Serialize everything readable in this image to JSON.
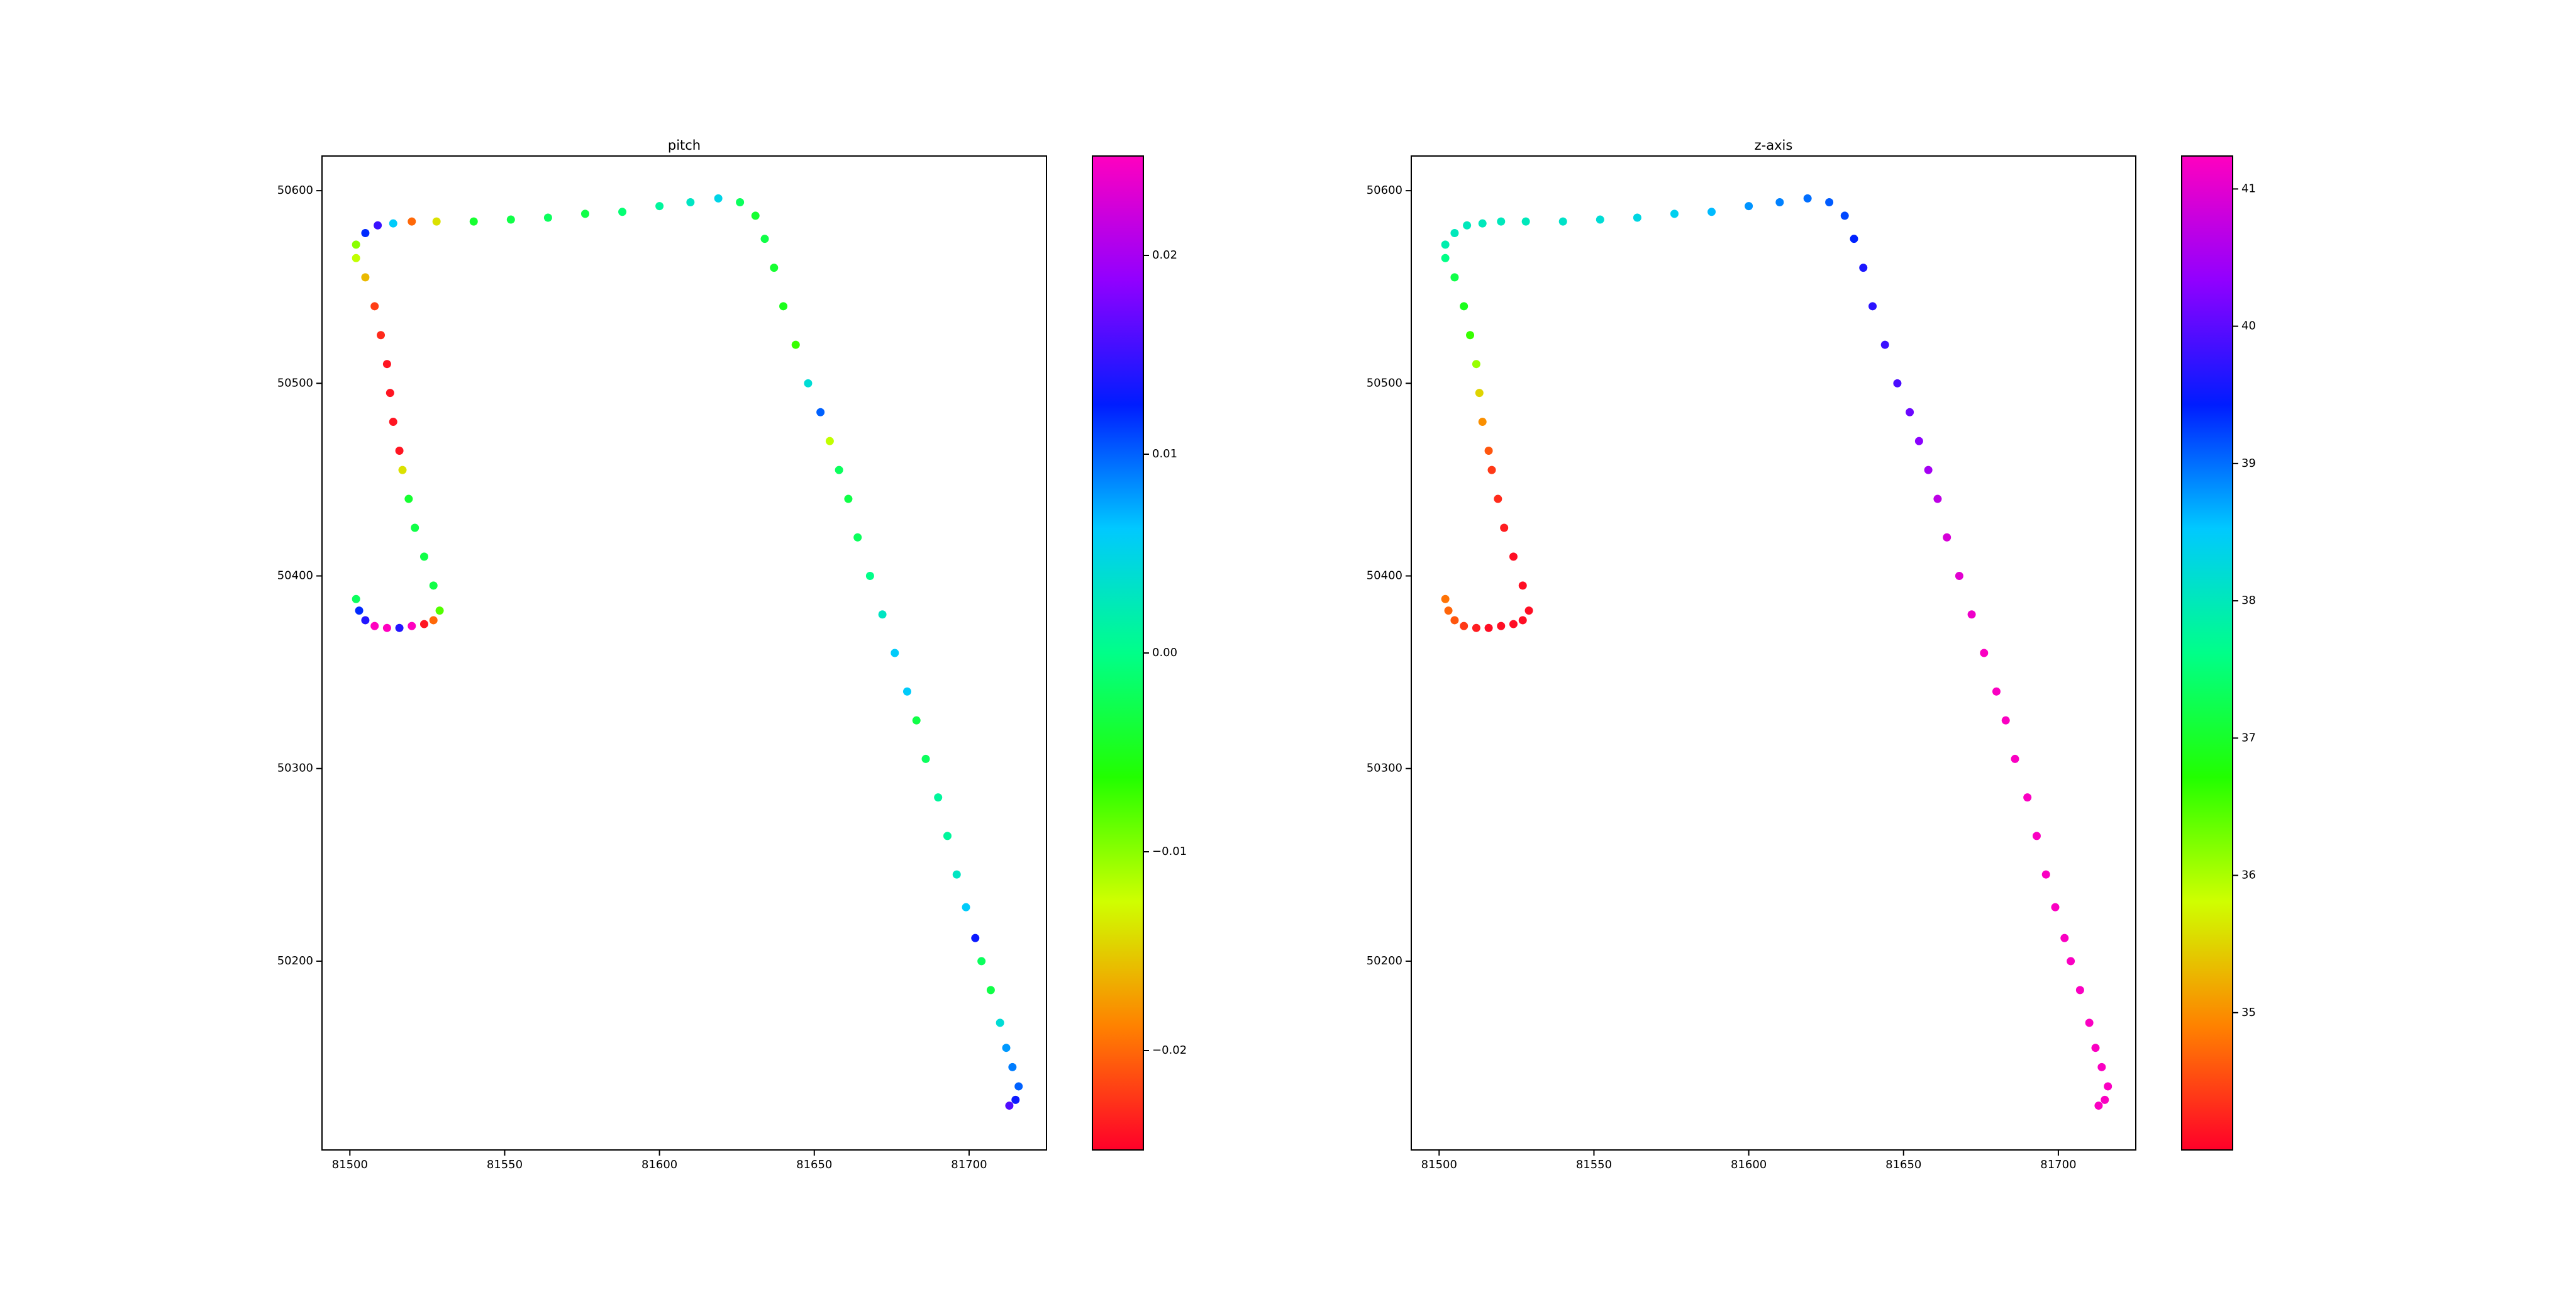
{
  "chart_data": [
    {
      "type": "scatter",
      "title": "pitch",
      "x": [
        81502,
        81503,
        81505,
        81508,
        81512,
        81516,
        81520,
        81524,
        81527,
        81529,
        81527,
        81524,
        81521,
        81519,
        81517,
        81516,
        81514,
        81513,
        81512,
        81510,
        81508,
        81505,
        81502,
        81502,
        81505,
        81509,
        81514,
        81520,
        81528,
        81540,
        81552,
        81564,
        81576,
        81588,
        81600,
        81610,
        81619,
        81626,
        81631,
        81634,
        81637,
        81640,
        81644,
        81648,
        81652,
        81655,
        81658,
        81661,
        81664,
        81668,
        81672,
        81676,
        81680,
        81683,
        81686,
        81690,
        81693,
        81696,
        81699,
        81702,
        81704,
        81707,
        81710,
        81712,
        81714,
        81716,
        81715,
        81713
      ],
      "y": [
        50388,
        50382,
        50377,
        50374,
        50373,
        50373,
        50374,
        50375,
        50377,
        50382,
        50395,
        50410,
        50425,
        50440,
        50455,
        50465,
        50480,
        50495,
        50510,
        50525,
        50540,
        50555,
        50565,
        50572,
        50578,
        50582,
        50583,
        50584,
        50584,
        50584,
        50585,
        50586,
        50588,
        50589,
        50592,
        50594,
        50596,
        50594,
        50587,
        50575,
        50560,
        50540,
        50520,
        50500,
        50485,
        50470,
        50455,
        50440,
        50420,
        50400,
        50380,
        50360,
        50340,
        50325,
        50305,
        50285,
        50265,
        50245,
        50228,
        50212,
        50200,
        50185,
        50168,
        50155,
        50145,
        50135,
        50128,
        50125
      ],
      "c": [
        -0.002,
        0.012,
        0.014,
        0.025,
        0.025,
        0.014,
        0.025,
        -0.024,
        -0.02,
        -0.008,
        -0.003,
        -0.003,
        -0.003,
        -0.004,
        -0.014,
        -0.024,
        -0.024,
        -0.024,
        -0.024,
        -0.023,
        -0.022,
        -0.016,
        -0.012,
        -0.01,
        0.012,
        0.015,
        0.006,
        -0.02,
        -0.014,
        -0.004,
        -0.003,
        -0.002,
        -0.003,
        -0.001,
        0.001,
        0.003,
        0.005,
        -0.002,
        -0.004,
        -0.003,
        -0.004,
        -0.005,
        -0.007,
        0.004,
        0.01,
        -0.012,
        -0.002,
        -0.003,
        -0.002,
        0.0,
        0.003,
        0.006,
        0.006,
        -0.003,
        -0.002,
        0.001,
        0.001,
        0.003,
        0.006,
        0.013,
        -0.002,
        -0.003,
        0.004,
        0.008,
        0.009,
        0.01,
        0.013,
        0.016
      ],
      "xlim": [
        81491,
        81725
      ],
      "ylim": [
        50102,
        50618
      ],
      "xticks": [
        81500,
        81550,
        81600,
        81650,
        81700
      ],
      "yticks": [
        50200,
        50300,
        50400,
        50500,
        50600
      ],
      "clim": [
        -0.025,
        0.025
      ],
      "cticks": [
        {
          "value": -0.02,
          "label": "−0.02"
        },
        {
          "value": -0.01,
          "label": "−0.01"
        },
        {
          "value": 0,
          "label": "0.00"
        },
        0.01,
        0.02
      ],
      "colormap": [
        "#ff0029",
        "#ff8200",
        "#cfff00",
        "#22ff00",
        "#00ff89",
        "#00c9ff",
        "#001cff",
        "#9100ff",
        "#ff00bf"
      ]
    },
    {
      "type": "scatter",
      "title": "z-axis",
      "x": [
        81502,
        81503,
        81505,
        81508,
        81512,
        81516,
        81520,
        81524,
        81527,
        81529,
        81527,
        81524,
        81521,
        81519,
        81517,
        81516,
        81514,
        81513,
        81512,
        81510,
        81508,
        81505,
        81502,
        81502,
        81505,
        81509,
        81514,
        81520,
        81528,
        81540,
        81552,
        81564,
        81576,
        81588,
        81600,
        81610,
        81619,
        81626,
        81631,
        81634,
        81637,
        81640,
        81644,
        81648,
        81652,
        81655,
        81658,
        81661,
        81664,
        81668,
        81672,
        81676,
        81680,
        81683,
        81686,
        81690,
        81693,
        81696,
        81699,
        81702,
        81704,
        81707,
        81710,
        81712,
        81714,
        81716,
        81715,
        81713
      ],
      "y": [
        50388,
        50382,
        50377,
        50374,
        50373,
        50373,
        50374,
        50375,
        50377,
        50382,
        50395,
        50410,
        50425,
        50440,
        50455,
        50465,
        50480,
        50495,
        50510,
        50525,
        50540,
        50555,
        50565,
        50572,
        50578,
        50582,
        50583,
        50584,
        50584,
        50584,
        50585,
        50586,
        50588,
        50589,
        50592,
        50594,
        50596,
        50594,
        50587,
        50575,
        50560,
        50540,
        50520,
        50500,
        50485,
        50470,
        50455,
        50440,
        50420,
        50400,
        50380,
        50360,
        50340,
        50325,
        50305,
        50285,
        50265,
        50245,
        50228,
        50212,
        50200,
        50185,
        50168,
        50155,
        50145,
        50135,
        50128,
        50125
      ],
      "c": [
        34.8,
        34.7,
        34.6,
        34.4,
        34.2,
        34.1,
        34.1,
        34.1,
        34.1,
        34.1,
        34.1,
        34.1,
        34.2,
        34.3,
        34.4,
        34.6,
        35.0,
        35.5,
        36.1,
        36.6,
        36.9,
        37.2,
        37.6,
        37.9,
        38.0,
        38.0,
        38.0,
        38.0,
        38.0,
        38.1,
        38.2,
        38.3,
        38.4,
        38.6,
        38.8,
        38.9,
        39.0,
        39.1,
        39.2,
        39.4,
        39.6,
        39.7,
        39.8,
        39.9,
        40.1,
        40.3,
        40.5,
        40.7,
        40.9,
        41.0,
        41.1,
        41.2,
        41.2,
        41.2,
        41.2,
        41.2,
        41.2,
        41.2,
        41.2,
        41.2,
        41.2,
        41.2,
        41.2,
        41.2,
        41.2,
        41.2,
        41.2,
        41.2
      ],
      "xlim": [
        81491,
        81725
      ],
      "ylim": [
        50102,
        50618
      ],
      "xticks": [
        81500,
        81550,
        81600,
        81650,
        81700
      ],
      "yticks": [
        50200,
        50300,
        50400,
        50500,
        50600
      ],
      "clim": [
        34.0,
        41.24
      ],
      "cticks": [
        35,
        36,
        37,
        38,
        39,
        40,
        41
      ],
      "colormap": [
        "#ff0029",
        "#ff8200",
        "#cfff00",
        "#22ff00",
        "#00ff89",
        "#00c9ff",
        "#001cff",
        "#9100ff",
        "#ff00bf"
      ]
    }
  ]
}
